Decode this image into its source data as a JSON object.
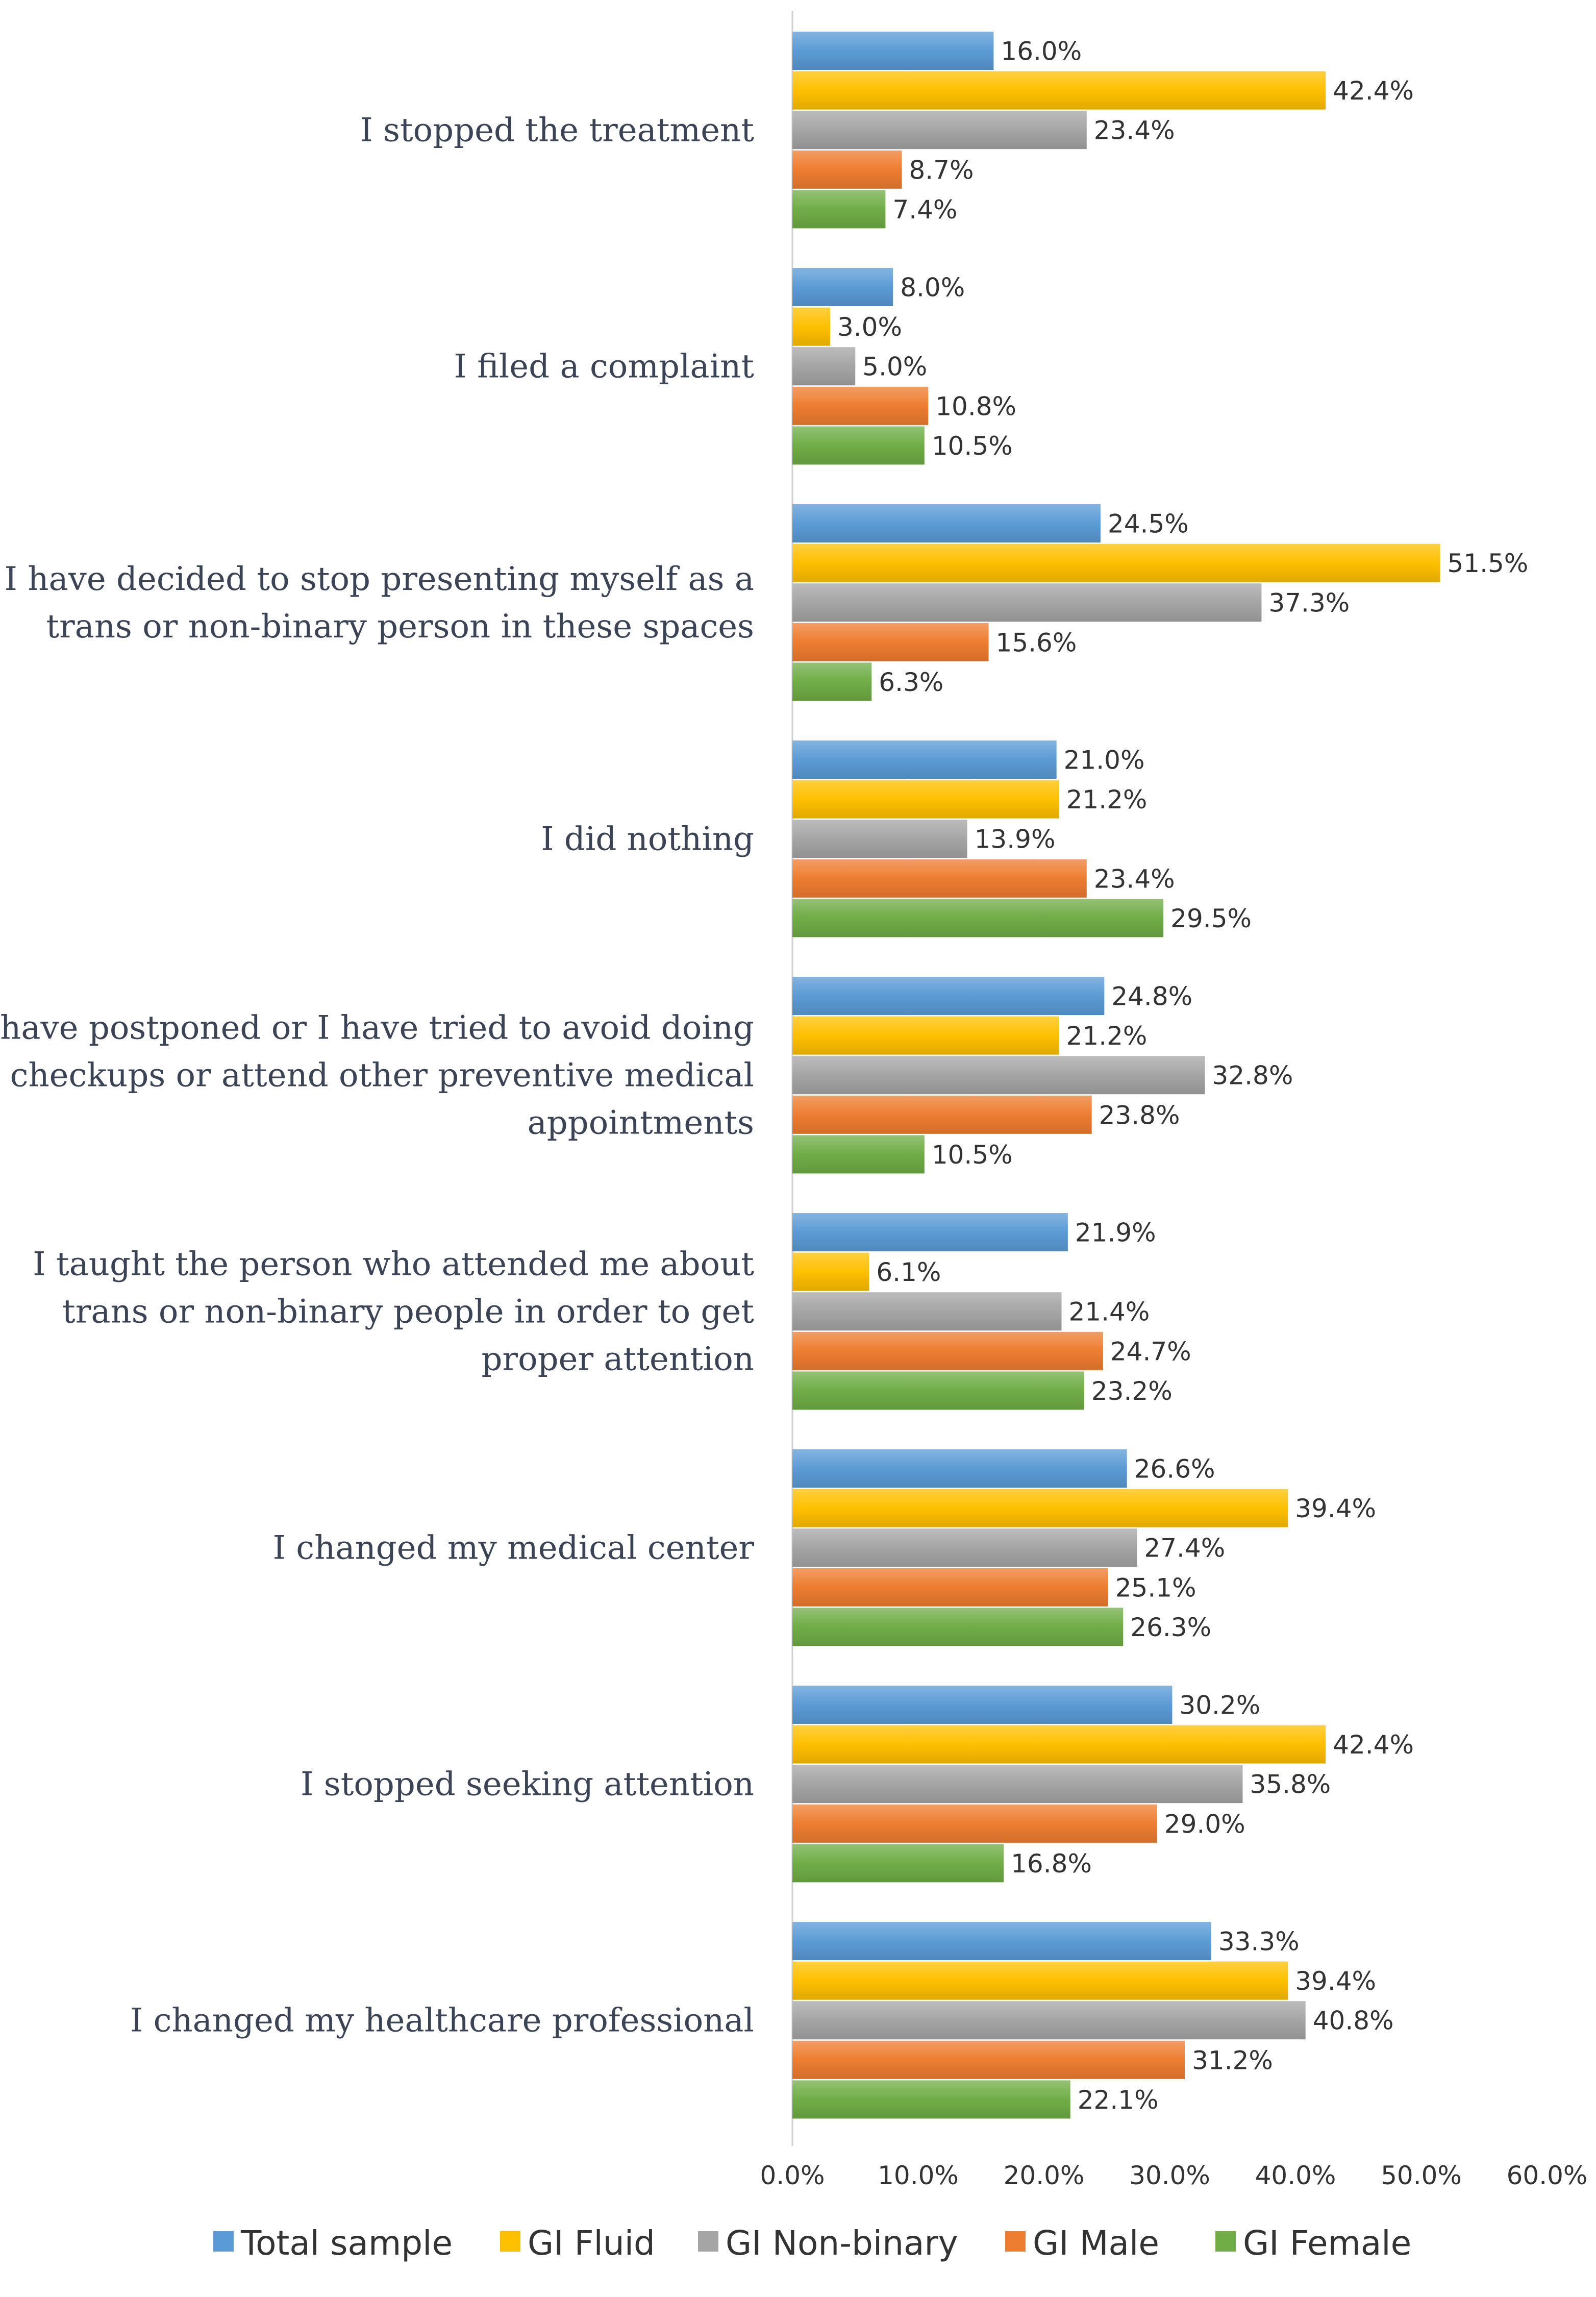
{
  "chart_data": {
    "type": "bar",
    "orientation": "horizontal",
    "title": "",
    "xlabel": "",
    "ylabel": "",
    "xlim": [
      0,
      60
    ],
    "xticks": [
      "0.0%",
      "10.0%",
      "20.0%",
      "30.0%",
      "40.0%",
      "50.0%",
      "60.0%"
    ],
    "grid": false,
    "legend_position": "bottom",
    "categories": [
      "I stopped the treatment",
      "I filed a complaint",
      "I have decided to stop presenting myself as a trans or non-binary person in these spaces",
      "I did nothing",
      "I have postponed or I have tried to avoid doing checkups or attend other preventive medical appointments",
      "I taught the person who attended me about trans or non-binary people in order to get proper attention",
      "I changed my medical center",
      "I stopped seeking attention",
      "I changed my healthcare professional"
    ],
    "category_lines": [
      [
        "I stopped the treatment"
      ],
      [
        "I filed a complaint"
      ],
      [
        "I have decided to stop presenting myself as a",
        "trans or non-binary person in these spaces"
      ],
      [
        "I did nothing"
      ],
      [
        "I have postponed or I have tried to avoid doing",
        "checkups or attend other preventive medical",
        "appointments"
      ],
      [
        "I taught the person who attended me about",
        "trans or non-binary people in order to get",
        "proper attention"
      ],
      [
        "I changed my medical center"
      ],
      [
        "I stopped seeking attention"
      ],
      [
        "I changed my healthcare professional"
      ]
    ],
    "series": [
      {
        "name": "Total sample",
        "color": "#5b9bd5",
        "values": [
          16.0,
          8.0,
          24.5,
          21.0,
          24.8,
          21.9,
          26.6,
          30.2,
          33.3
        ],
        "labels": [
          "16.0%",
          "8.0%",
          "24.5%",
          "21.0%",
          "24.8%",
          "21.9%",
          "26.6%",
          "30.2%",
          "33.3%"
        ]
      },
      {
        "name": "GI Fluid",
        "color": "#ffc000",
        "values": [
          42.4,
          3.0,
          51.5,
          21.2,
          21.2,
          6.1,
          39.4,
          42.4,
          39.4
        ],
        "labels": [
          "42.4%",
          "3.0%",
          "51.5%",
          "21.2%",
          "21.2%",
          "6.1%",
          "39.4%",
          "42.4%",
          "39.4%"
        ]
      },
      {
        "name": "GI Non-binary",
        "color": "#a5a5a5",
        "values": [
          23.4,
          5.0,
          37.3,
          13.9,
          32.8,
          21.4,
          27.4,
          35.8,
          40.8
        ],
        "labels": [
          "23.4%",
          "5.0%",
          "37.3%",
          "13.9%",
          "32.8%",
          "21.4%",
          "27.4%",
          "35.8%",
          "40.8%"
        ]
      },
      {
        "name": "GI Male",
        "color": "#ed7d31",
        "values": [
          8.7,
          10.8,
          15.6,
          23.4,
          23.8,
          24.7,
          25.1,
          29.0,
          31.2
        ],
        "labels": [
          "8.7%",
          "10.8%",
          "15.6%",
          "23.4%",
          "23.8%",
          "24.7%",
          "25.1%",
          "29.0%",
          "31.2%"
        ]
      },
      {
        "name": "GI Female",
        "color": "#70ad47",
        "values": [
          7.4,
          10.5,
          6.3,
          29.5,
          10.5,
          23.2,
          26.3,
          16.8,
          22.1
        ],
        "labels": [
          "7.4%",
          "10.5%",
          "6.3%",
          "29.5%",
          "10.5%",
          "23.2%",
          "26.3%",
          "16.8%",
          "22.1%"
        ]
      }
    ]
  }
}
